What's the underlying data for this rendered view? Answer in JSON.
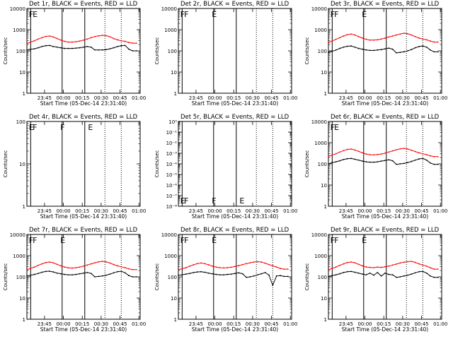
{
  "figure": {
    "background": "#ffffff",
    "events_color": "#000000",
    "lld_color": "#ff0000"
  },
  "chart_data": [
    {
      "type": "line",
      "title": "Det 1r, BLACK = Events, RED = LLD",
      "ylabel": "Counts/sec",
      "xlabel": "Start Time (05-Dec-14 23:31:40)",
      "yscale": "log",
      "ylim": [
        1,
        10000
      ],
      "y_ticks": [
        "1",
        "10",
        "100",
        "1000",
        "10000"
      ],
      "x_ticks": [
        "23:45",
        "00:00",
        "00:15",
        "00:30",
        "00:45",
        "01:00"
      ],
      "x": [
        0,
        3,
        6,
        9,
        12,
        15,
        18,
        21,
        24,
        27,
        30,
        33,
        36,
        39,
        42,
        45,
        48,
        51,
        54,
        57,
        60,
        63,
        66,
        69,
        72,
        75,
        78,
        81,
        84,
        87
      ],
      "series": [
        {
          "name": "Events",
          "values": [
            110,
            120,
            125,
            140,
            160,
            175,
            180,
            160,
            150,
            140,
            130,
            130,
            130,
            135,
            140,
            150,
            160,
            150,
            110,
            110,
            110,
            115,
            125,
            140,
            160,
            175,
            180,
            120,
            100,
            100
          ]
        },
        {
          "name": "LLD",
          "values": [
            220,
            260,
            300,
            360,
            420,
            480,
            500,
            450,
            380,
            320,
            280,
            260,
            260,
            270,
            290,
            320,
            360,
            420,
            470,
            510,
            540,
            520,
            460,
            380,
            330,
            300,
            280,
            250,
            230,
            230
          ]
        }
      ],
      "vlines_solid": [
        3,
        28,
        46
      ],
      "vlines_dotted": [
        62,
        75
      ],
      "annotations": [
        "F",
        "E"
      ]
    },
    {
      "type": "line",
      "title": "Det 2r, BLACK = Events, RED = LLD",
      "ylabel": "Counts/sec",
      "xlabel": "Start Time (05-Dec-14 23:31:40)",
      "yscale": "log",
      "ylim": [
        1,
        10000
      ],
      "y_ticks": [
        "1",
        "10",
        "100",
        "1000",
        "10000"
      ],
      "x_ticks": [
        "23:45",
        "00:00",
        "00:15",
        "00:30",
        "00:45",
        "01:00"
      ],
      "x": [],
      "series": [],
      "vlines_solid": [
        3,
        28,
        46
      ],
      "vlines_dotted": [
        62,
        75
      ],
      "annotations": [
        "F",
        "F",
        "E"
      ]
    },
    {
      "type": "line",
      "title": "Det 3r, BLACK = Events, RED = LLD",
      "ylabel": "Counts/sec",
      "xlabel": "Start Time (05-Dec-14 23:31:40)",
      "yscale": "log",
      "ylim": [
        1,
        10000
      ],
      "y_ticks": [
        "1",
        "10",
        "100",
        "1000",
        "10000"
      ],
      "x_ticks": [
        "23:45",
        "00:00",
        "00:15",
        "00:30",
        "00:45",
        "01:00"
      ],
      "x": [
        0,
        3,
        6,
        9,
        12,
        15,
        18,
        21,
        24,
        27,
        30,
        33,
        36,
        39,
        42,
        45,
        48,
        51,
        54,
        57,
        60,
        63,
        66,
        69,
        72,
        75,
        78,
        81,
        84,
        87
      ],
      "series": [
        {
          "name": "Events",
          "values": [
            85,
            95,
            110,
            130,
            150,
            165,
            170,
            150,
            130,
            120,
            110,
            105,
            105,
            110,
            115,
            125,
            135,
            120,
            80,
            85,
            90,
            100,
            115,
            140,
            160,
            170,
            150,
            110,
            90,
            90
          ]
        },
        {
          "name": "LLD",
          "values": [
            240,
            290,
            350,
            420,
            500,
            580,
            620,
            560,
            470,
            400,
            350,
            320,
            320,
            330,
            360,
            400,
            450,
            500,
            560,
            620,
            680,
            640,
            560,
            470,
            400,
            360,
            330,
            290,
            260,
            260
          ]
        }
      ],
      "vlines_solid": [
        3,
        28,
        46
      ],
      "vlines_dotted": [
        62,
        75
      ],
      "annotations": [
        "F",
        "F",
        "E"
      ]
    },
    {
      "type": "line",
      "title": "Det 4r, BLACK = Events, RED = LLD",
      "ylabel": "Counts/sec",
      "xlabel": "Start Time (05-Dec-14 23:31:40)",
      "yscale": "log",
      "ylim": [
        1,
        100
      ],
      "y_ticks": [
        "1",
        "10",
        "100"
      ],
      "x_ticks": [
        "23:45",
        "00:00",
        "00:15",
        "00:30",
        "00:45",
        "01:00"
      ],
      "x": [],
      "series": [],
      "vlines_solid": [
        3,
        28,
        46
      ],
      "vlines_dotted": [
        62,
        75
      ],
      "annotations": [
        "E",
        "F",
        "F",
        "E"
      ]
    },
    {
      "type": "line",
      "title": "Det 5r, BLACK = Events, RED = LLD",
      "ylabel": "Counts/sec",
      "xlabel": "Start Time (05-Dec-14 23:31:40)",
      "yscale": "log",
      "ylim": [
        1,
        1e-08
      ],
      "y_ticks": [
        "10⁻⁸",
        "10⁻⁷",
        "10⁻⁶",
        "10⁻⁵",
        "10⁻⁴",
        "10⁻³",
        "10⁻²",
        "10⁻¹",
        "10⁰"
      ],
      "x_ticks": [
        "23:45",
        "00:00",
        "00:15",
        "00:30",
        "00:45",
        "01:00"
      ],
      "x": [],
      "series": [],
      "vlines_solid": [
        3,
        28,
        46
      ],
      "vlines_dotted": [
        62,
        75
      ],
      "annotations": [
        "E",
        "F",
        "F",
        "E"
      ]
    },
    {
      "type": "line",
      "title": "Det 6r, BLACK = Events, RED = LLD",
      "ylabel": "Counts/sec",
      "xlabel": "Start Time (05-Dec-14 23:31:40)",
      "yscale": "log",
      "ylim": [
        1,
        10000
      ],
      "y_ticks": [
        "1",
        "10",
        "100",
        "1000",
        "10000"
      ],
      "x_ticks": [
        "23:45",
        "00:00",
        "00:15",
        "00:30",
        "00:45",
        "01:00"
      ],
      "x": [
        0,
        3,
        6,
        9,
        12,
        15,
        18,
        21,
        24,
        27,
        30,
        33,
        36,
        39,
        42,
        45,
        48,
        51,
        54,
        57,
        60,
        63,
        66,
        69,
        72,
        75,
        78,
        81,
        84,
        87
      ],
      "series": [
        {
          "name": "Events",
          "values": [
            100,
            115,
            125,
            140,
            160,
            175,
            180,
            165,
            150,
            135,
            125,
            120,
            120,
            125,
            135,
            145,
            155,
            140,
            95,
            100,
            105,
            115,
            130,
            150,
            170,
            180,
            150,
            110,
            95,
            95
          ]
        },
        {
          "name": "LLD",
          "values": [
            230,
            260,
            300,
            360,
            420,
            480,
            500,
            450,
            390,
            330,
            290,
            270,
            265,
            275,
            290,
            320,
            360,
            410,
            460,
            510,
            540,
            500,
            440,
            380,
            330,
            300,
            270,
            240,
            220,
            220
          ]
        }
      ],
      "vlines_solid": [
        3,
        28,
        46
      ],
      "vlines_dotted": [
        62,
        75
      ],
      "annotations": [
        "F",
        "E"
      ]
    },
    {
      "type": "line",
      "title": "Det 7r, BLACK = Events, RED = LLD",
      "ylabel": "Counts/sec",
      "xlabel": "Start Time (05-Dec-14 23:31:40)",
      "yscale": "log",
      "ylim": [
        1,
        10000
      ],
      "y_ticks": [
        "1",
        "10",
        "100",
        "1000",
        "10000"
      ],
      "x_ticks": [
        "23:45",
        "00:00",
        "00:15",
        "00:30",
        "00:45",
        "01:00"
      ],
      "x": [
        0,
        3,
        6,
        9,
        12,
        15,
        18,
        21,
        24,
        27,
        30,
        33,
        36,
        39,
        42,
        45,
        48,
        51,
        54,
        57,
        60,
        63,
        66,
        69,
        72,
        75,
        78,
        81,
        84,
        87
      ],
      "series": [
        {
          "name": "Events",
          "values": [
            110,
            120,
            130,
            145,
            165,
            180,
            185,
            170,
            150,
            140,
            130,
            125,
            125,
            130,
            140,
            150,
            160,
            145,
            100,
            105,
            110,
            120,
            135,
            155,
            175,
            185,
            155,
            115,
            100,
            100
          ]
        },
        {
          "name": "LLD",
          "values": [
            220,
            250,
            290,
            350,
            410,
            470,
            500,
            460,
            390,
            330,
            290,
            265,
            260,
            270,
            290,
            320,
            360,
            410,
            460,
            510,
            540,
            510,
            450,
            380,
            330,
            300,
            270,
            240,
            220,
            220
          ]
        }
      ],
      "vlines_solid": [
        3,
        28,
        46
      ],
      "vlines_dotted": [
        62,
        75
      ],
      "annotations": [
        "F",
        "F",
        "E"
      ]
    },
    {
      "type": "line",
      "title": "Det 8r, BLACK = Events, RED = LLD",
      "ylabel": "Counts/sec",
      "xlabel": "Start Time (05-Dec-14 23:31:40)",
      "yscale": "log",
      "ylim": [
        1,
        10000
      ],
      "y_ticks": [
        "1",
        "10",
        "100",
        "1000",
        "10000"
      ],
      "x_ticks": [
        "23:45",
        "00:00",
        "00:15",
        "00:30",
        "00:45",
        "01:00"
      ],
      "x": [
        0,
        3,
        6,
        9,
        12,
        15,
        18,
        21,
        24,
        27,
        30,
        33,
        36,
        39,
        42,
        45,
        48,
        51,
        54,
        57,
        60,
        63,
        66,
        69,
        72,
        75,
        78,
        81,
        84,
        87
      ],
      "series": [
        {
          "name": "Events",
          "values": [
            120,
            125,
            135,
            145,
            160,
            170,
            175,
            165,
            150,
            140,
            130,
            125,
            125,
            130,
            135,
            145,
            155,
            140,
            95,
            100,
            110,
            125,
            140,
            160,
            120,
            40,
            110,
            115,
            105,
            105
          ]
        },
        {
          "name": "LLD",
          "values": [
            220,
            240,
            270,
            320,
            370,
            420,
            450,
            420,
            370,
            320,
            290,
            270,
            265,
            270,
            285,
            310,
            340,
            380,
            420,
            460,
            500,
            520,
            500,
            440,
            380,
            330,
            290,
            250,
            230,
            230
          ]
        }
      ],
      "vlines_solid": [
        3,
        28,
        46
      ],
      "vlines_dotted": [
        62,
        75
      ],
      "annotations": [
        "F",
        "F",
        "E"
      ]
    },
    {
      "type": "line",
      "title": "Det 9r, BLACK = Events, RED = LLD",
      "ylabel": "Counts/sec",
      "xlabel": "Start Time (05-Dec-14 23:31:40)",
      "yscale": "log",
      "ylim": [
        1,
        10000
      ],
      "y_ticks": [
        "1",
        "10",
        "100",
        "1000",
        "10000"
      ],
      "x_ticks": [
        "23:45",
        "00:00",
        "00:15",
        "00:30",
        "00:45",
        "01:00"
      ],
      "x": [
        0,
        3,
        6,
        9,
        12,
        15,
        18,
        21,
        24,
        27,
        30,
        33,
        36,
        39,
        42,
        45,
        48,
        51,
        54,
        57,
        60,
        63,
        66,
        69,
        72,
        75,
        78,
        81,
        84,
        87
      ],
      "series": [
        {
          "name": "Events",
          "values": [
            105,
            115,
            125,
            140,
            160,
            175,
            180,
            165,
            150,
            135,
            125,
            150,
            120,
            160,
            110,
            150,
            130,
            125,
            95,
            100,
            110,
            120,
            135,
            155,
            175,
            180,
            150,
            110,
            95,
            95
          ]
        },
        {
          "name": "LLD",
          "values": [
            220,
            250,
            290,
            350,
            410,
            470,
            500,
            460,
            390,
            330,
            290,
            280,
            270,
            290,
            280,
            300,
            320,
            360,
            400,
            450,
            490,
            520,
            540,
            480,
            410,
            360,
            320,
            270,
            230,
            230
          ]
        }
      ],
      "vlines_solid": [
        3,
        28,
        46
      ],
      "vlines_dotted": [
        62,
        75
      ],
      "annotations": [
        "F",
        "F",
        "E"
      ]
    }
  ]
}
